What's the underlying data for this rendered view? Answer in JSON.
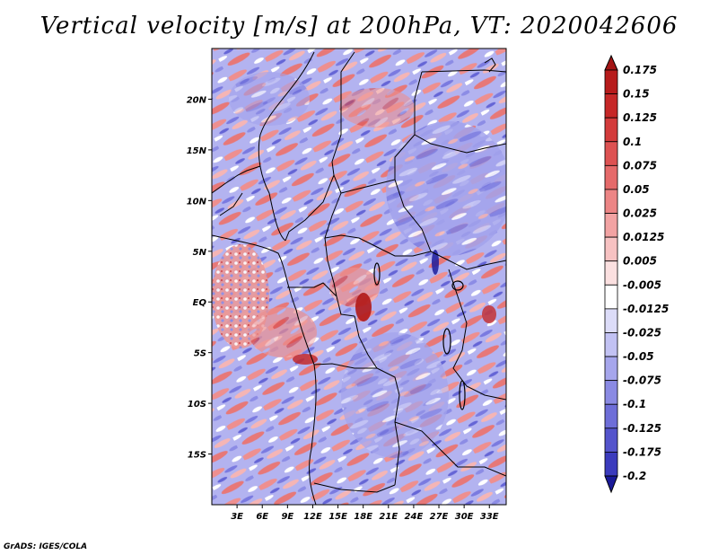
{
  "title": "Vertical velocity [m/s] at 200hPa, VT: 2020042606",
  "footer": "GrADS: IGES/COLA",
  "map": {
    "region": "Central Africa",
    "lon_range": [
      0,
      35
    ],
    "lat_range": [
      -20,
      25
    ],
    "lat_ticks": [
      {
        "value": 20,
        "label": "20N"
      },
      {
        "value": 15,
        "label": "15N"
      },
      {
        "value": 10,
        "label": "10N"
      },
      {
        "value": 5,
        "label": "5N"
      },
      {
        "value": 0,
        "label": "EQ"
      },
      {
        "value": -5,
        "label": "5S"
      },
      {
        "value": -10,
        "label": "10S"
      },
      {
        "value": -15,
        "label": "15S"
      }
    ],
    "lon_ticks": [
      {
        "value": 3,
        "label": "3E"
      },
      {
        "value": 6,
        "label": "6E"
      },
      {
        "value": 9,
        "label": "9E"
      },
      {
        "value": 12,
        "label": "12E"
      },
      {
        "value": 15,
        "label": "15E"
      },
      {
        "value": 18,
        "label": "18E"
      },
      {
        "value": 21,
        "label": "21E"
      },
      {
        "value": 24,
        "label": "24E"
      },
      {
        "value": 27,
        "label": "27E"
      },
      {
        "value": 30,
        "label": "30E"
      },
      {
        "value": 33,
        "label": "33E"
      }
    ]
  },
  "colorbar": {
    "levels": [
      {
        "label": "0.175",
        "color": "#b71c1c"
      },
      {
        "label": "0.15",
        "color": "#c62828"
      },
      {
        "label": "0.125",
        "color": "#d33b3b"
      },
      {
        "label": "0.1",
        "color": "#dd5252"
      },
      {
        "label": "0.075",
        "color": "#e56a6a"
      },
      {
        "label": "0.05",
        "color": "#ec8585"
      },
      {
        "label": "0.025",
        "color": "#f2a3a3"
      },
      {
        "label": "0.0125",
        "color": "#f7c2c2"
      },
      {
        "label": "0.005",
        "color": "#fbe0e0"
      },
      {
        "label": "-0.005",
        "color": "#ffffff"
      },
      {
        "label": "-0.0125",
        "color": "#dcdcf8"
      },
      {
        "label": "-0.025",
        "color": "#c2c2f3"
      },
      {
        "label": "-0.05",
        "color": "#a6a6ec"
      },
      {
        "label": "-0.075",
        "color": "#8a8ae3"
      },
      {
        "label": "-0.1",
        "color": "#6e6ed8"
      },
      {
        "label": "-0.125",
        "color": "#5454cc"
      },
      {
        "label": "-0.175",
        "color": "#3b3bbd"
      },
      {
        "label": "-0.2",
        "color": "#2525a8"
      }
    ],
    "top_color": "#a31515",
    "bottom_color": "#1a1a99"
  }
}
